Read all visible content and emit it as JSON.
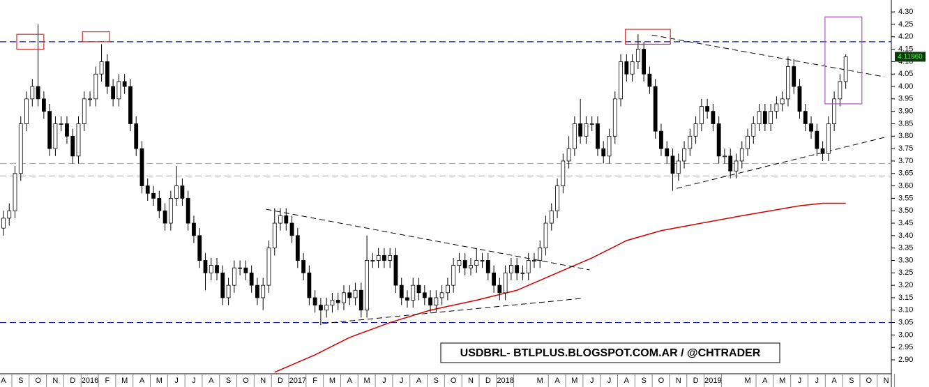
{
  "chart_data": {
    "type": "candlestick",
    "open": [
      3.43,
      3.47,
      3.5,
      3.65,
      3.85,
      3.95,
      4.0,
      3.95,
      3.9,
      3.75,
      3.85,
      3.85,
      3.8,
      3.72,
      3.85,
      3.95,
      3.95,
      4.05,
      4.1,
      4.0,
      3.95,
      4.02,
      4.0,
      3.85,
      3.75,
      3.6,
      3.57,
      3.55,
      3.5,
      3.45,
      3.55,
      3.6,
      3.55,
      3.45,
      3.4,
      3.3,
      3.25,
      3.28,
      3.25,
      3.15,
      3.2,
      3.27,
      3.27,
      3.25,
      3.2,
      3.15,
      3.2,
      3.35,
      3.45,
      3.48,
      3.45,
      3.4,
      3.3,
      3.25,
      3.15,
      3.12,
      3.1,
      3.12,
      3.14,
      3.13,
      3.17,
      3.15,
      3.18,
      3.1,
      3.3,
      3.3,
      3.32,
      3.3,
      3.32,
      3.2,
      3.15,
      3.14,
      3.2,
      3.17,
      3.15,
      3.12,
      3.15,
      3.17,
      3.2,
      3.28,
      3.3,
      3.27,
      3.28,
      3.3,
      3.3,
      3.25,
      3.2,
      3.17,
      3.25,
      3.28,
      3.25,
      3.25,
      3.3,
      3.3,
      3.35,
      3.45,
      3.5,
      3.6,
      3.7,
      3.75,
      3.85,
      3.8,
      3.85,
      3.85,
      3.75,
      3.72,
      3.8,
      3.95,
      4.1,
      4.05,
      4.1,
      4.15,
      4.05,
      4.0,
      3.82,
      3.75,
      3.72,
      3.65,
      3.7,
      3.75,
      3.8,
      3.85,
      3.92,
      3.9,
      3.85,
      3.72,
      3.72,
      3.66,
      3.7,
      3.75,
      3.8,
      3.85,
      3.9,
      3.85,
      3.9,
      3.93,
      3.95,
      4.08,
      4.0,
      3.9,
      3.85,
      3.82,
      3.75,
      3.73,
      3.85,
      3.95,
      4.02
    ],
    "high": [
      3.5,
      3.53,
      3.68,
      3.88,
      3.98,
      4.03,
      4.25,
      3.98,
      3.93,
      3.88,
      3.88,
      3.88,
      3.83,
      3.88,
      3.98,
      3.98,
      4.08,
      4.17,
      4.13,
      4.03,
      4.05,
      4.05,
      4.03,
      3.88,
      3.78,
      3.63,
      3.6,
      3.58,
      3.53,
      3.58,
      3.68,
      3.63,
      3.58,
      3.48,
      3.43,
      3.33,
      3.31,
      3.31,
      3.28,
      3.23,
      3.3,
      3.3,
      3.3,
      3.28,
      3.23,
      3.23,
      3.38,
      3.51,
      3.51,
      3.51,
      3.48,
      3.43,
      3.33,
      3.28,
      3.18,
      3.15,
      3.15,
      3.17,
      3.17,
      3.2,
      3.2,
      3.21,
      3.21,
      3.4,
      3.33,
      3.35,
      3.35,
      3.35,
      3.35,
      3.23,
      3.18,
      3.23,
      3.23,
      3.2,
      3.18,
      3.18,
      3.2,
      3.23,
      3.31,
      3.33,
      3.33,
      3.31,
      3.35,
      3.33,
      3.33,
      3.28,
      3.23,
      3.28,
      3.31,
      3.31,
      3.28,
      3.33,
      3.33,
      3.38,
      3.48,
      3.53,
      3.63,
      3.73,
      3.8,
      3.88,
      3.95,
      3.88,
      3.88,
      3.88,
      3.78,
      3.83,
      3.98,
      4.13,
      4.13,
      4.13,
      4.21,
      4.18,
      4.08,
      4.03,
      3.85,
      3.78,
      3.75,
      3.73,
      3.78,
      3.83,
      3.88,
      3.95,
      3.95,
      3.93,
      3.88,
      3.75,
      3.75,
      3.73,
      3.78,
      3.83,
      3.88,
      3.93,
      3.93,
      3.93,
      3.96,
      3.98,
      4.12,
      4.11,
      4.03,
      3.93,
      3.88,
      3.85,
      3.78,
      3.88,
      3.98,
      4.05,
      4.13
    ],
    "low": [
      3.4,
      3.44,
      3.47,
      3.62,
      3.82,
      3.92,
      3.92,
      3.87,
      3.72,
      3.72,
      3.82,
      3.77,
      3.69,
      3.69,
      3.82,
      3.92,
      3.92,
      4.02,
      3.97,
      3.92,
      3.92,
      3.97,
      3.82,
      3.72,
      3.57,
      3.54,
      3.52,
      3.47,
      3.42,
      3.42,
      3.52,
      3.52,
      3.42,
      3.37,
      3.27,
      3.18,
      3.22,
      3.22,
      3.12,
      3.12,
      3.17,
      3.24,
      3.22,
      3.17,
      3.12,
      3.1,
      3.17,
      3.32,
      3.42,
      3.42,
      3.37,
      3.27,
      3.22,
      3.12,
      3.09,
      3.04,
      3.07,
      3.09,
      3.1,
      3.1,
      3.12,
      3.12,
      3.07,
      3.07,
      3.27,
      3.27,
      3.27,
      3.27,
      3.17,
      3.12,
      3.11,
      3.11,
      3.14,
      3.12,
      3.09,
      3.09,
      3.12,
      3.14,
      3.17,
      3.25,
      3.24,
      3.24,
      3.25,
      3.27,
      3.22,
      3.17,
      3.14,
      3.14,
      3.22,
      3.22,
      3.22,
      3.22,
      3.27,
      3.27,
      3.32,
      3.42,
      3.47,
      3.57,
      3.67,
      3.72,
      3.77,
      3.77,
      3.82,
      3.72,
      3.69,
      3.69,
      3.77,
      3.92,
      4.02,
      4.02,
      4.07,
      4.02,
      3.97,
      3.79,
      3.72,
      3.69,
      3.58,
      3.62,
      3.67,
      3.72,
      3.77,
      3.82,
      3.87,
      3.82,
      3.69,
      3.69,
      3.63,
      3.63,
      3.67,
      3.72,
      3.77,
      3.82,
      3.82,
      3.82,
      3.87,
      3.9,
      3.92,
      3.97,
      3.87,
      3.82,
      3.79,
      3.72,
      3.7,
      3.7,
      3.82,
      3.92,
      3.99
    ],
    "close": [
      3.47,
      3.5,
      3.65,
      3.85,
      3.95,
      4.0,
      3.95,
      3.9,
      3.75,
      3.85,
      3.85,
      3.8,
      3.72,
      3.85,
      3.95,
      3.95,
      4.05,
      4.1,
      4.0,
      3.95,
      4.02,
      4.0,
      3.85,
      3.75,
      3.6,
      3.57,
      3.55,
      3.5,
      3.45,
      3.55,
      3.6,
      3.55,
      3.45,
      3.4,
      3.3,
      3.25,
      3.28,
      3.25,
      3.15,
      3.2,
      3.27,
      3.27,
      3.25,
      3.2,
      3.15,
      3.2,
      3.35,
      3.45,
      3.48,
      3.45,
      3.4,
      3.3,
      3.25,
      3.15,
      3.12,
      3.1,
      3.12,
      3.14,
      3.13,
      3.17,
      3.15,
      3.18,
      3.1,
      3.3,
      3.3,
      3.32,
      3.3,
      3.32,
      3.2,
      3.15,
      3.14,
      3.2,
      3.17,
      3.15,
      3.12,
      3.15,
      3.17,
      3.2,
      3.28,
      3.3,
      3.27,
      3.28,
      3.3,
      3.3,
      3.25,
      3.2,
      3.17,
      3.25,
      3.28,
      3.25,
      3.25,
      3.3,
      3.3,
      3.35,
      3.45,
      3.5,
      3.6,
      3.7,
      3.75,
      3.85,
      3.8,
      3.85,
      3.85,
      3.75,
      3.72,
      3.8,
      3.95,
      4.1,
      4.05,
      4.1,
      4.15,
      4.05,
      4.0,
      3.82,
      3.75,
      3.72,
      3.65,
      3.7,
      3.75,
      3.8,
      3.85,
      3.92,
      3.9,
      3.85,
      3.72,
      3.72,
      3.66,
      3.7,
      3.75,
      3.8,
      3.85,
      3.9,
      3.85,
      3.9,
      3.93,
      3.95,
      4.08,
      4.0,
      3.9,
      3.85,
      3.82,
      3.75,
      3.73,
      3.85,
      3.95,
      4.02,
      4.1196
    ],
    "up_color": "#ffffff",
    "down_color": "#000000",
    "xlim": [
      -0.6,
      153.9
    ],
    "ylim": [
      2.844,
      4.348
    ],
    "xticks": [
      {
        "value": 0,
        "label": "A"
      },
      {
        "value": 3,
        "label": "S"
      },
      {
        "value": 6,
        "label": "O"
      },
      {
        "value": 9,
        "label": "N"
      },
      {
        "value": 12,
        "label": "D"
      },
      {
        "value": 15,
        "label": "2016"
      },
      {
        "value": 18,
        "label": "F"
      },
      {
        "value": 21,
        "label": "M"
      },
      {
        "value": 24,
        "label": "A"
      },
      {
        "value": 27,
        "label": "M"
      },
      {
        "value": 30,
        "label": "J"
      },
      {
        "value": 33,
        "label": "J"
      },
      {
        "value": 36,
        "label": "A"
      },
      {
        "value": 39,
        "label": "S"
      },
      {
        "value": 42,
        "label": "O"
      },
      {
        "value": 45,
        "label": "N"
      },
      {
        "value": 48,
        "label": "D"
      },
      {
        "value": 51,
        "label": "2017"
      },
      {
        "value": 54,
        "label": "F"
      },
      {
        "value": 57,
        "label": "M"
      },
      {
        "value": 60,
        "label": "A"
      },
      {
        "value": 63,
        "label": "M"
      },
      {
        "value": 66,
        "label": "J"
      },
      {
        "value": 69,
        "label": "J"
      },
      {
        "value": 72,
        "label": "A"
      },
      {
        "value": 75,
        "label": "S"
      },
      {
        "value": 78,
        "label": "O"
      },
      {
        "value": 81,
        "label": "N"
      },
      {
        "value": 84,
        "label": "D"
      },
      {
        "value": 87,
        "label": "2018"
      },
      {
        "value": 93,
        "label": "M"
      },
      {
        "value": 96,
        "label": "A"
      },
      {
        "value": 99,
        "label": "M"
      },
      {
        "value": 102,
        "label": "J"
      },
      {
        "value": 105,
        "label": "J"
      },
      {
        "value": 108,
        "label": "A"
      },
      {
        "value": 111,
        "label": "S"
      },
      {
        "value": 114,
        "label": "O"
      },
      {
        "value": 117,
        "label": "N"
      },
      {
        "value": 120,
        "label": "D"
      },
      {
        "value": 123,
        "label": "2019"
      },
      {
        "value": 129,
        "label": "M"
      },
      {
        "value": 132,
        "label": "A"
      },
      {
        "value": 135,
        "label": "M"
      },
      {
        "value": 138,
        "label": "J"
      },
      {
        "value": 141,
        "label": "J"
      },
      {
        "value": 144,
        "label": "A"
      },
      {
        "value": 147,
        "label": "S"
      },
      {
        "value": 150,
        "label": "O"
      },
      {
        "value": 153,
        "label": "N"
      }
    ],
    "yticks": [
      {
        "value": 2.9,
        "label": "2.90"
      },
      {
        "value": 2.95,
        "label": "2.95"
      },
      {
        "value": 3.0,
        "label": "3.00"
      },
      {
        "value": 3.05,
        "label": "3.05"
      },
      {
        "value": 3.1,
        "label": "3.10"
      },
      {
        "value": 3.15,
        "label": "3.15"
      },
      {
        "value": 3.2,
        "label": "3.20"
      },
      {
        "value": 3.25,
        "label": "3.25"
      },
      {
        "value": 3.3,
        "label": "3.30"
      },
      {
        "value": 3.35,
        "label": "3.35"
      },
      {
        "value": 3.4,
        "label": "3.40"
      },
      {
        "value": 3.45,
        "label": "3.45"
      },
      {
        "value": 3.5,
        "label": "3.50"
      },
      {
        "value": 3.55,
        "label": "3.55"
      },
      {
        "value": 3.6,
        "label": "3.60"
      },
      {
        "value": 3.65,
        "label": "3.65"
      },
      {
        "value": 3.7,
        "label": "3.70"
      },
      {
        "value": 3.75,
        "label": "3.75"
      },
      {
        "value": 3.8,
        "label": "3.80"
      },
      {
        "value": 3.85,
        "label": "3.85"
      },
      {
        "value": 3.9,
        "label": "3.90"
      },
      {
        "value": 3.95,
        "label": "3.95"
      },
      {
        "value": 4.0,
        "label": "4.00"
      },
      {
        "value": 4.05,
        "label": "4.05"
      },
      {
        "value": 4.1,
        "label": "4.10"
      },
      {
        "value": 4.15,
        "label": "4.15"
      },
      {
        "value": 4.2,
        "label": "4.20"
      },
      {
        "value": 4.25,
        "label": "4.25"
      },
      {
        "value": 4.3,
        "label": "4.30"
      }
    ],
    "hlines": [
      {
        "value": 4.18,
        "color": "#1a1ab8"
      },
      {
        "value": 3.05,
        "color": "#1a1ab8"
      },
      {
        "value": 3.69,
        "color": "#b0b0b0"
      },
      {
        "value": 3.64,
        "color": "#b0b0b0"
      }
    ],
    "trendlines": [
      {
        "x": [
          45.5,
          101.6
        ],
        "values": [
          3.506,
          3.262
        ]
      },
      {
        "x": [
          55.3,
          100.1
        ],
        "values": [
          3.046,
          3.147
        ]
      },
      {
        "x": [
          112.4,
          152.7
        ],
        "values": [
          4.207,
          4.039
        ]
      },
      {
        "x": [
          116.7,
          152.7
        ],
        "values": [
          3.59,
          3.795
        ]
      }
    ],
    "boxes": [
      {
        "x": [
          2.3,
          7.0
        ],
        "values": [
          4.21,
          4.15
        ],
        "color": "#d03030"
      },
      {
        "x": [
          13.7,
          18.4
        ],
        "values": [
          4.22,
          4.18
        ],
        "color": "#d03030"
      },
      {
        "x": [
          107.8,
          115.6
        ],
        "values": [
          4.23,
          4.17
        ],
        "color": "#d03030"
      },
      {
        "x": [
          142.4,
          148.8
        ],
        "values": [
          4.28,
          3.93
        ],
        "color": "#b050c0"
      }
    ],
    "moving_average": {
      "color": "#d00000",
      "x": [
        47,
        54,
        60,
        67,
        74,
        82,
        89,
        96,
        102,
        108,
        114,
        121,
        128,
        133,
        138,
        142,
        146
      ],
      "values": [
        2.85,
        2.92,
        2.99,
        3.05,
        3.1,
        3.14,
        3.18,
        3.25,
        3.31,
        3.38,
        3.42,
        3.45,
        3.48,
        3.5,
        3.52,
        3.53,
        3.53
      ]
    },
    "last_price": {
      "value": 4.1196,
      "label": "4.11960"
    },
    "watermark": "USDBRL- BTLPLUS.BLOGSPOT.COM.AR / @CHTRADER"
  }
}
